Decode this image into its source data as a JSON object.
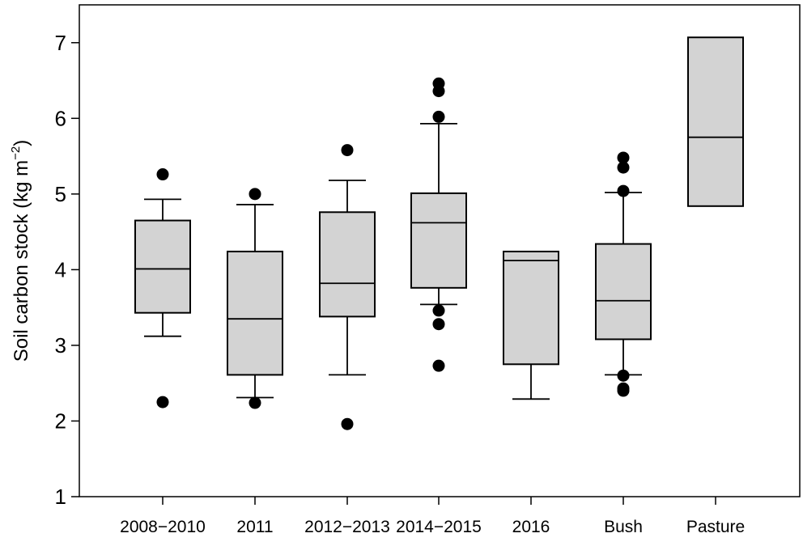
{
  "chart_data": {
    "type": "boxplot",
    "title": "",
    "xlabel": "",
    "ylabel": {
      "main": "Soil carbon stock (kg m",
      "sup": "−2",
      "close": ")"
    },
    "ylim": [
      1,
      7.5
    ],
    "yticks": [
      1,
      2,
      3,
      4,
      5,
      6,
      7
    ],
    "grid": false,
    "legend": "none",
    "box_fill": "#d3d3d3",
    "line_color": "#000000",
    "categories": [
      "2008−2010",
      "2011",
      "2012−2013",
      "2014−2015",
      "2016",
      "Bush",
      "Pasture"
    ],
    "boxes": [
      {
        "category": "2008−2010",
        "whisker_low": 3.12,
        "q1": 3.43,
        "median": 4.01,
        "q3": 4.65,
        "whisker_high": 4.93,
        "outliers": [
          5.26,
          2.25
        ]
      },
      {
        "category": "2011",
        "whisker_low": 2.31,
        "q1": 2.61,
        "median": 3.35,
        "q3": 4.24,
        "whisker_high": 4.86,
        "outliers": [
          5.0,
          2.24
        ]
      },
      {
        "category": "2012−2013",
        "whisker_low": 2.61,
        "q1": 3.38,
        "median": 3.82,
        "q3": 4.76,
        "whisker_high": 5.18,
        "outliers": [
          5.58,
          1.96
        ]
      },
      {
        "category": "2014−2015",
        "whisker_low": 3.54,
        "q1": 3.76,
        "median": 4.62,
        "q3": 5.01,
        "whisker_high": 5.93,
        "outliers": [
          6.46,
          6.36,
          6.02,
          3.46,
          3.28,
          2.73
        ]
      },
      {
        "category": "2016",
        "whisker_low": 2.29,
        "q1": 2.75,
        "median": 4.12,
        "q3": 4.24,
        "whisker_high": 4.24,
        "outliers": []
      },
      {
        "category": "Bush",
        "whisker_low": 2.61,
        "q1": 3.08,
        "median": 3.59,
        "q3": 4.34,
        "whisker_high": 5.02,
        "outliers": [
          5.48,
          5.35,
          5.04,
          2.6,
          2.43,
          2.4
        ]
      },
      {
        "category": "Pasture",
        "whisker_low": 4.84,
        "q1": 4.84,
        "median": 5.75,
        "q3": 7.07,
        "whisker_high": 7.07,
        "outliers": []
      }
    ]
  }
}
